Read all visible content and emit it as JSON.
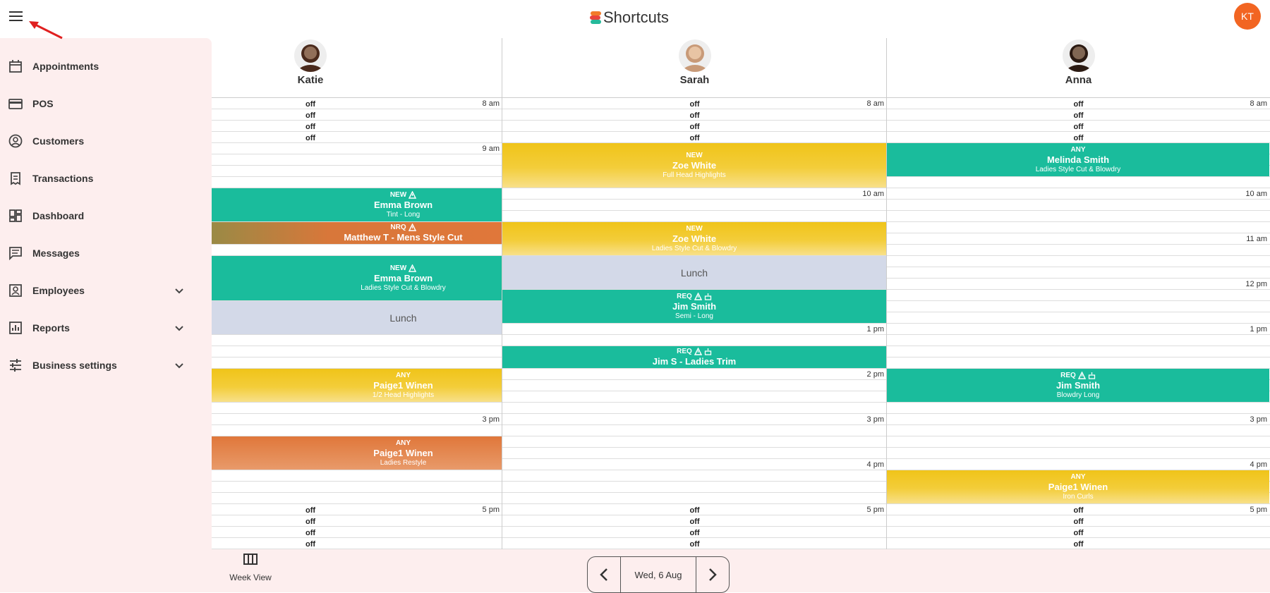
{
  "header": {
    "logo": "Shortcuts",
    "user_initials": "KT"
  },
  "nav": [
    {
      "label": "Appointments",
      "icon": "calendar"
    },
    {
      "label": "POS",
      "icon": "card"
    },
    {
      "label": "Customers",
      "icon": "person"
    },
    {
      "label": "Transactions",
      "icon": "receipt"
    },
    {
      "label": "Dashboard",
      "icon": "dashboard"
    },
    {
      "label": "Messages",
      "icon": "message"
    },
    {
      "label": "Employees",
      "icon": "badge",
      "expandable": true
    },
    {
      "label": "Reports",
      "icon": "chart",
      "expandable": true
    },
    {
      "label": "Business settings",
      "icon": "sliders",
      "expandable": true
    }
  ],
  "staff": [
    {
      "name": "Katie",
      "avatar_color": "#4a2a1c",
      "appointments": [
        {
          "start_hour": 10,
          "duration_min": 45,
          "style": "teal",
          "tag": "NEW",
          "icons": [
            "warning"
          ],
          "client": "Emma Brown",
          "service": "Tint - Long"
        },
        {
          "start_hour": 10.75,
          "duration_min": 30,
          "style": "mixed",
          "tag": "NRQ",
          "icons": [
            "warning"
          ],
          "client": "Matthew T - Mens Style Cut"
        },
        {
          "start_hour": 11.5,
          "duration_min": 60,
          "style": "teal",
          "tag": "NEW",
          "icons": [
            "warning"
          ],
          "client": "Emma Brown",
          "service": "Ladies Style Cut & Blowdry"
        },
        {
          "start_hour": 12.5,
          "duration_min": 45,
          "style": "lunch",
          "client": "Lunch"
        },
        {
          "start_hour": 14,
          "duration_min": 45,
          "style": "yellow",
          "tag": "ANY",
          "client": "Paige1 Winen",
          "service": "1/2 Head Highlights"
        },
        {
          "start_hour": 15.5,
          "duration_min": 45,
          "style": "orange",
          "tag": "ANY",
          "client": "Paige1 Winen",
          "service": "Ladies Restyle"
        }
      ]
    },
    {
      "name": "Sarah",
      "avatar_color": "#c89a78",
      "appointments": [
        {
          "start_hour": 9,
          "duration_min": 60,
          "style": "yellow",
          "tag": "NEW",
          "client": "Zoe White",
          "service": "Full Head Highlights"
        },
        {
          "start_hour": 10.75,
          "duration_min": 45,
          "style": "yellow",
          "tag": "NEW",
          "client": "Zoe White",
          "service": "Ladies Style Cut & Blowdry"
        },
        {
          "start_hour": 11.5,
          "duration_min": 45,
          "style": "lunch",
          "client": "Lunch"
        },
        {
          "start_hour": 12.25,
          "duration_min": 45,
          "style": "teal",
          "tag": "REQ",
          "icons": [
            "warning",
            "cake"
          ],
          "client": "Jim Smith",
          "service": "Semi - Long"
        },
        {
          "start_hour": 13.5,
          "duration_min": 30,
          "style": "teal",
          "tag": "REQ",
          "icons": [
            "warning",
            "cake"
          ],
          "client": "Jim S - Ladies Trim"
        }
      ]
    },
    {
      "name": "Anna",
      "avatar_color": "#2b1a12",
      "appointments": [
        {
          "start_hour": 9,
          "duration_min": 45,
          "style": "teal",
          "tag": "ANY",
          "client": "Melinda Smith",
          "service": "Ladies Style Cut & Blowdry"
        },
        {
          "start_hour": 14,
          "duration_min": 45,
          "style": "teal",
          "tag": "REQ",
          "icons": [
            "warning",
            "cake"
          ],
          "client": "Jim Smith",
          "service": "Blowdry Long"
        },
        {
          "start_hour": 16.25,
          "duration_min": 45,
          "style": "yellow",
          "tag": "ANY",
          "client": "Paige1 Winen",
          "service": "Iron Curls"
        }
      ]
    }
  ],
  "schedule": {
    "off_label": "off",
    "hours": [
      "8 am",
      "9 am",
      "10 am",
      "11 am",
      "12 pm",
      "1 pm",
      "2 pm",
      "3 pm",
      "4 pm",
      "5 pm"
    ]
  },
  "footer": {
    "view_label": "Week View",
    "date": "Wed, 6 Aug"
  }
}
